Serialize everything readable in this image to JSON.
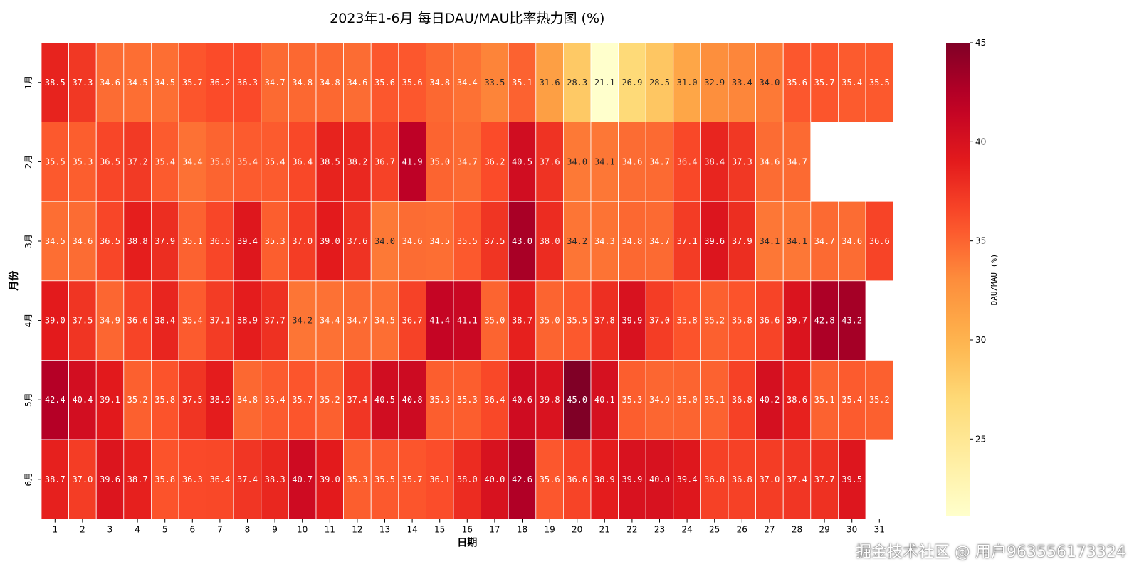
{
  "chart_data": {
    "type": "heatmap",
    "title": "2023年1-6月 每日DAU/MAU比率热力图 (%)",
    "xlabel": "日期",
    "ylabel": "月份",
    "x": [
      "1",
      "2",
      "3",
      "4",
      "5",
      "6",
      "7",
      "8",
      "9",
      "10",
      "11",
      "12",
      "13",
      "14",
      "15",
      "16",
      "17",
      "18",
      "19",
      "20",
      "21",
      "22",
      "23",
      "24",
      "25",
      "26",
      "27",
      "28",
      "29",
      "30",
      "31"
    ],
    "y": [
      "1月",
      "2月",
      "3月",
      "4月",
      "5月",
      "6月"
    ],
    "values": [
      [
        38.5,
        37.3,
        34.6,
        34.5,
        34.5,
        35.7,
        36.2,
        36.3,
        34.7,
        34.8,
        34.8,
        34.6,
        35.6,
        35.6,
        34.8,
        34.4,
        33.5,
        35.1,
        31.6,
        28.3,
        21.1,
        26.9,
        28.5,
        31.0,
        32.9,
        33.4,
        34.0,
        35.6,
        35.7,
        35.4,
        35.5
      ],
      [
        35.5,
        35.3,
        36.5,
        37.2,
        35.4,
        34.4,
        35.0,
        35.4,
        35.4,
        36.4,
        38.5,
        38.2,
        36.7,
        41.9,
        35.0,
        34.7,
        36.2,
        40.5,
        37.6,
        34.0,
        34.1,
        34.6,
        34.7,
        36.4,
        38.4,
        37.3,
        34.6,
        34.7,
        null,
        null,
        null
      ],
      [
        34.5,
        34.6,
        36.5,
        38.8,
        37.9,
        35.1,
        36.5,
        39.4,
        35.3,
        37.0,
        39.0,
        37.6,
        34.0,
        34.6,
        34.5,
        35.5,
        37.5,
        43.0,
        38.0,
        34.2,
        34.3,
        34.8,
        34.7,
        37.1,
        39.6,
        37.9,
        34.1,
        34.1,
        34.7,
        34.6,
        36.6
      ],
      [
        39.0,
        37.5,
        34.9,
        36.6,
        38.4,
        35.4,
        37.1,
        38.9,
        37.7,
        34.2,
        34.4,
        34.7,
        34.5,
        36.7,
        41.4,
        41.1,
        35.0,
        38.7,
        35.0,
        35.5,
        37.8,
        39.9,
        37.0,
        35.8,
        35.2,
        35.8,
        36.6,
        39.7,
        42.8,
        43.2,
        null
      ],
      [
        42.4,
        40.4,
        39.1,
        35.2,
        35.8,
        37.5,
        38.9,
        34.8,
        35.4,
        35.7,
        35.2,
        37.4,
        40.5,
        40.8,
        35.3,
        35.3,
        36.4,
        40.6,
        39.8,
        45.0,
        40.1,
        35.3,
        34.9,
        35.0,
        35.1,
        36.8,
        40.2,
        38.6,
        35.1,
        35.4,
        35.2
      ],
      [
        38.7,
        37.0,
        39.6,
        38.7,
        35.8,
        36.3,
        36.4,
        37.4,
        38.3,
        40.7,
        39.0,
        35.3,
        35.5,
        35.7,
        36.1,
        38.0,
        40.0,
        42.6,
        35.6,
        36.6,
        38.9,
        39.9,
        40.0,
        39.4,
        36.8,
        36.8,
        37.0,
        37.4,
        37.7,
        39.5,
        null
      ]
    ],
    "vmin": 21.1,
    "vmax": 45.0,
    "colormap": "YlOrRd",
    "colorbar": {
      "label": "DAU/MAU (%)",
      "ticks": [
        25,
        30,
        35,
        40,
        45
      ]
    },
    "grid": false
  },
  "watermark": "掘金技术社区 @ 用户963556173324"
}
